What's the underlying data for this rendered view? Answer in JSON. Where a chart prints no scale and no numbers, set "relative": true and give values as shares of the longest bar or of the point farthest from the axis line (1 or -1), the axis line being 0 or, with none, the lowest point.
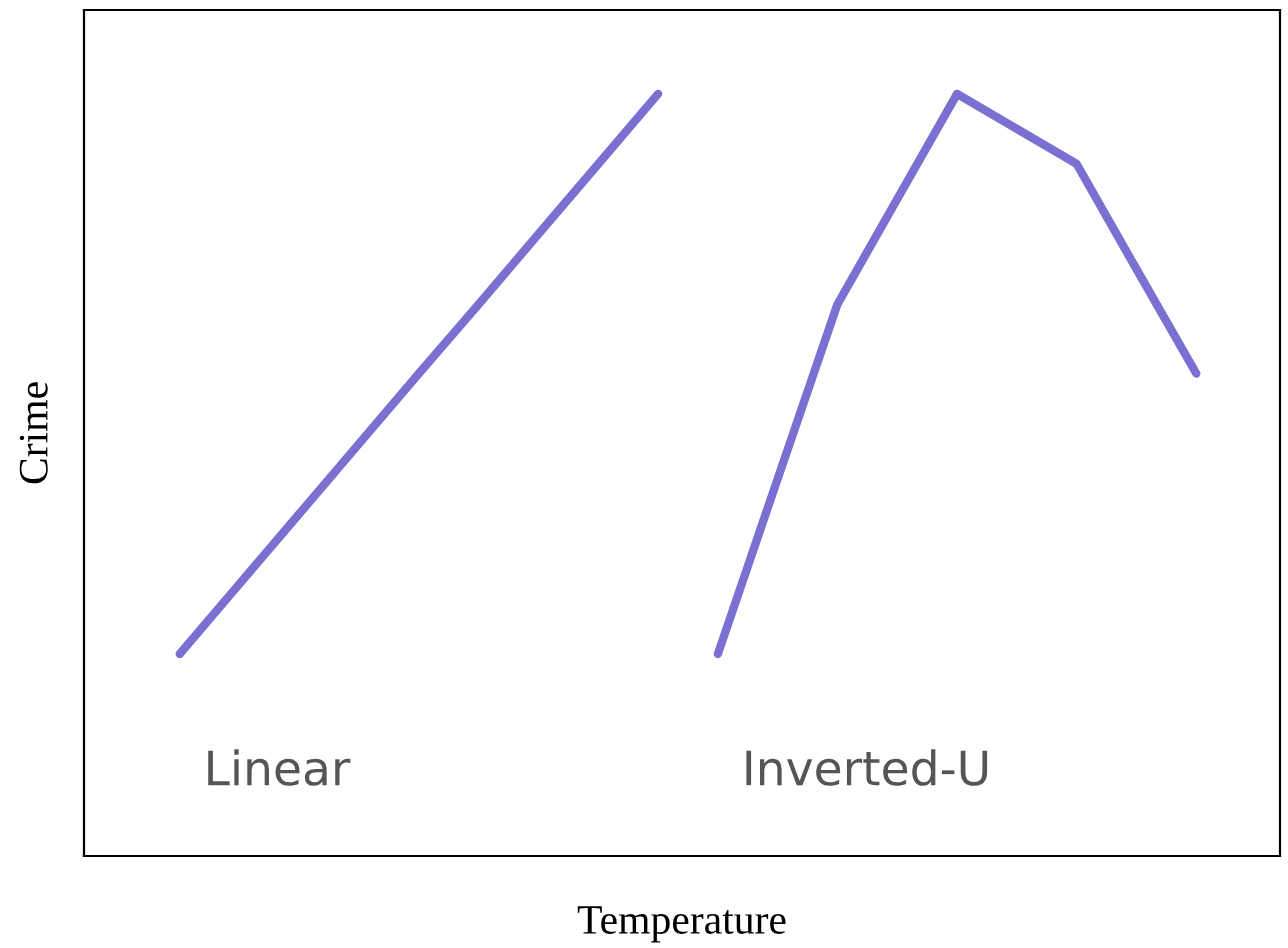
{
  "chart_data": {
    "type": "line",
    "relative": true,
    "xlabel": "Temperature",
    "ylabel": "Crime",
    "categories": [
      null,
      null,
      null,
      null,
      null,
      null,
      null,
      null,
      null,
      null,
      null,
      null,
      null,
      null,
      null,
      null,
      null,
      null
    ],
    "series": [
      {
        "name": "Linear",
        "color": "#7b70d2",
        "values": [
          0.265,
          0.357,
          0.449,
          0.541,
          0.633,
          0.724,
          0.816,
          0.908,
          1,
          null,
          null,
          null,
          null,
          null,
          null,
          null,
          null,
          null
        ]
      },
      {
        "name": "Inverted-U",
        "color": "#7b70d2",
        "values": [
          null,
          null,
          null,
          null,
          null,
          null,
          null,
          null,
          null,
          0.265,
          0.495,
          0.724,
          0.862,
          1,
          0.954,
          0.908,
          0.77,
          0.633
        ]
      }
    ]
  }
}
